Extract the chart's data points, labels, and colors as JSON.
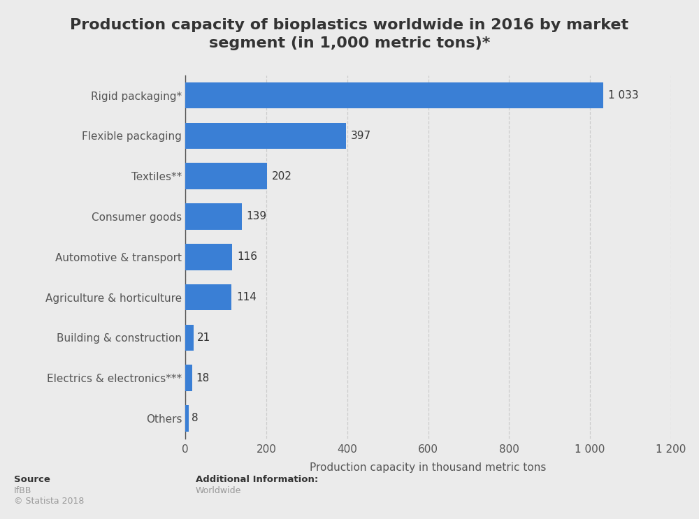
{
  "title": "Production capacity of bioplastics worldwide in 2016 by market\nsegment (in 1,000 metric tons)*",
  "categories": [
    "Others",
    "Electrics & electronics***",
    "Building & construction",
    "Agriculture & horticulture",
    "Automotive & transport",
    "Consumer goods",
    "Textiles**",
    "Flexible packaging",
    "Rigid packaging*"
  ],
  "values": [
    8,
    18,
    21,
    114,
    116,
    139,
    202,
    397,
    1033
  ],
  "value_labels": [
    "8",
    "18",
    "21",
    "114",
    "116",
    "139",
    "202",
    "397",
    "1 033"
  ],
  "bar_color": "#3a7fd5",
  "background_color": "#ebebeb",
  "plot_background_color": "#ebebeb",
  "xlabel": "Production capacity in thousand metric tons",
  "xlim": [
    0,
    1200
  ],
  "xticks": [
    0,
    200,
    400,
    600,
    800,
    1000,
    1200
  ],
  "xtick_labels": [
    "0",
    "200",
    "400",
    "600",
    "800",
    "1 000",
    "1 200"
  ],
  "title_fontsize": 16,
  "label_fontsize": 11,
  "tick_fontsize": 11,
  "source_bold": "Source",
  "source_gray1": "IfBB",
  "source_gray2": "© Statista 2018",
  "additional_info_label": "Additional Information:",
  "additional_info_value": "Worldwide",
  "text_dark": "#333333",
  "text_gray": "#999999",
  "text_label_color": "#555555"
}
